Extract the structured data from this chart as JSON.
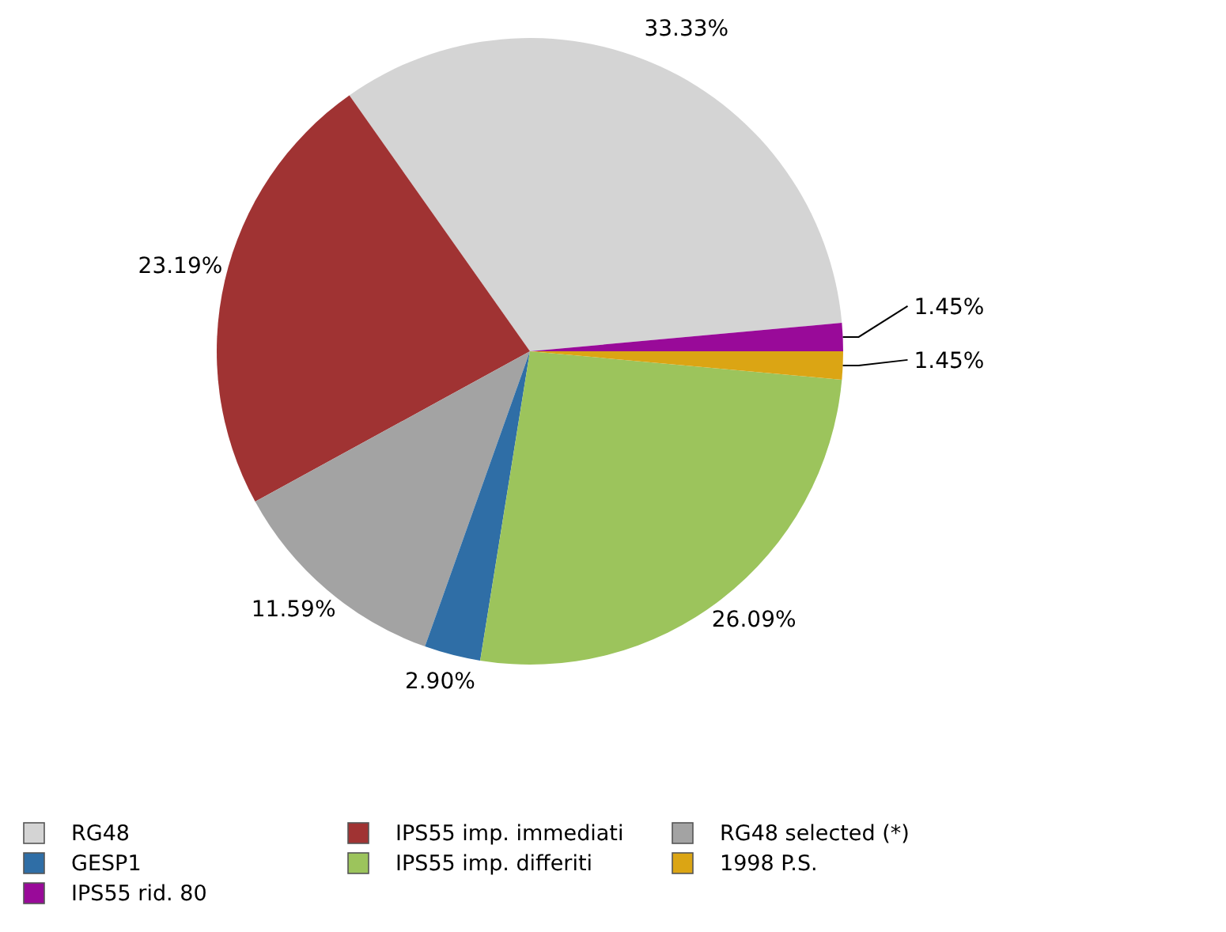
{
  "chart_data": {
    "type": "pie",
    "legend": "bottom",
    "categories": [
      "RG48",
      "IPS55 imp. immediati",
      "RG48 selected (*)",
      "GESP1",
      "IPS55 imp. differiti",
      "1998 P.S.",
      "IPS55 rid. 80"
    ],
    "values": [
      33.33,
      23.19,
      11.59,
      2.9,
      26.09,
      1.45,
      1.45
    ],
    "value_labels": [
      "33.33%",
      "23.19%",
      "11.59%",
      "2.90%",
      "26.09%",
      "1.45%",
      "1.45%"
    ],
    "colors": [
      "#d4d4d4",
      "#a03333",
      "#a3a3a3",
      "#2f6ea6",
      "#9cc45c",
      "#dba514",
      "#990a99"
    ]
  }
}
